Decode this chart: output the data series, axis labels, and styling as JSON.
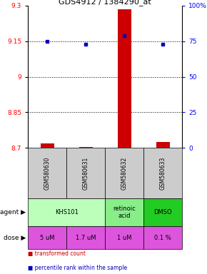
{
  "title": "GDS4912 / 1384290_at",
  "samples": [
    "GSM580630",
    "GSM580631",
    "GSM580632",
    "GSM580633"
  ],
  "bar_values": [
    8.72,
    8.705,
    9.285,
    8.725
  ],
  "bar_base": 8.7,
  "dot_percentiles": [
    75,
    73,
    79,
    73
  ],
  "ylim_left": [
    8.7,
    9.3
  ],
  "ylim_right": [
    0,
    100
  ],
  "yticks_left": [
    8.7,
    8.85,
    9.0,
    9.15,
    9.3
  ],
  "yticks_left_labels": [
    "8.7",
    "8.85",
    "9",
    "9.15",
    "9.3"
  ],
  "yticks_right": [
    0,
    25,
    50,
    75,
    100
  ],
  "yticks_right_labels": [
    "0",
    "25",
    "50",
    "75",
    "100%"
  ],
  "hlines": [
    8.85,
    9.0,
    9.15
  ],
  "bar_color": "#cc0000",
  "dot_color": "#0000bb",
  "agent_cells": [
    {
      "cols": [
        0,
        1
      ],
      "label": "KHS101",
      "color": "#bbffbb"
    },
    {
      "cols": [
        2,
        2
      ],
      "label": "retinoic\nacid",
      "color": "#88ee88"
    },
    {
      "cols": [
        3,
        3
      ],
      "label": "DMSO",
      "color": "#22cc22"
    }
  ],
  "dose_labels": [
    "5 uM",
    "1.7 uM",
    "1 uM",
    "0.1 %"
  ],
  "dose_color": "#dd55dd",
  "sample_bg_color": "#cccccc",
  "legend_items": [
    {
      "color": "#cc0000",
      "label": " transformed count"
    },
    {
      "color": "#0000bb",
      "label": " percentile rank within the sample"
    }
  ]
}
